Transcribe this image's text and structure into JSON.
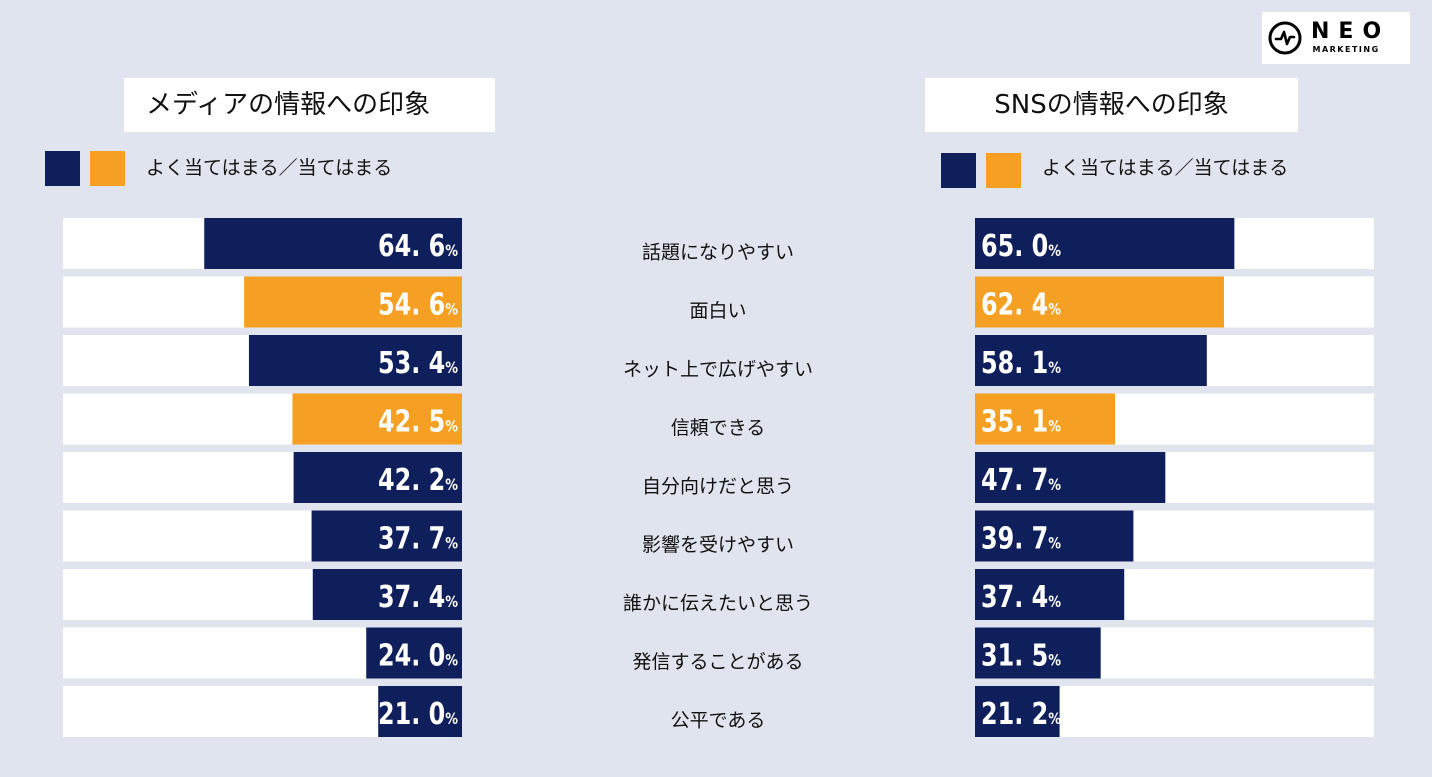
{
  "logo": {
    "main": "NEO",
    "sub": "MARKETING"
  },
  "colors": {
    "navy": "#0f1f5c",
    "orange": "#f5a023",
    "background": "#dfe4ee",
    "track": "#ffffff"
  },
  "chart_data": [
    {
      "type": "bar",
      "orientation": "horizontal",
      "direction": "right-to-left",
      "title": "メディアの情報への印象",
      "legend": "よく当てはまる／当てはまる",
      "categories": [
        "話題になりやすい",
        "面白い",
        "ネット上で広げやすい",
        "信頼できる",
        "自分向けだと思う",
        "影響を受けやすい",
        "誰かに伝えたいと思う",
        "発信することがある",
        "公平である"
      ],
      "values": [
        64.6,
        54.6,
        53.4,
        42.5,
        42.2,
        37.7,
        37.4,
        24.0,
        21.0
      ],
      "labels": [
        "64. 6",
        "54. 6",
        "53. 4",
        "42. 5",
        "42. 2",
        "37. 7",
        "37. 4",
        "24. 0",
        "21. 0"
      ],
      "unit": "%",
      "highlight": [
        false,
        true,
        false,
        true,
        false,
        false,
        false,
        false,
        false
      ],
      "xlim": [
        0,
        100
      ]
    },
    {
      "type": "bar",
      "orientation": "horizontal",
      "direction": "left-to-right",
      "title": "SNSの情報への印象",
      "legend": "よく当てはまる／当てはまる",
      "categories": [
        "話題になりやすい",
        "面白い",
        "ネット上で広げやすい",
        "信頼できる",
        "自分向けだと思う",
        "影響を受けやすい",
        "誰かに伝えたいと思う",
        "発信することがある",
        "公平である"
      ],
      "values": [
        65.0,
        62.4,
        58.1,
        35.1,
        47.7,
        39.7,
        37.4,
        31.5,
        21.2
      ],
      "labels": [
        "65. 0",
        "62. 4",
        "58. 1",
        "35. 1",
        "47. 7",
        "39. 7",
        "37. 4",
        "31. 5",
        "21. 2"
      ],
      "unit": "%",
      "highlight": [
        false,
        true,
        false,
        true,
        false,
        false,
        false,
        false,
        false
      ],
      "xlim": [
        0,
        100
      ]
    }
  ]
}
